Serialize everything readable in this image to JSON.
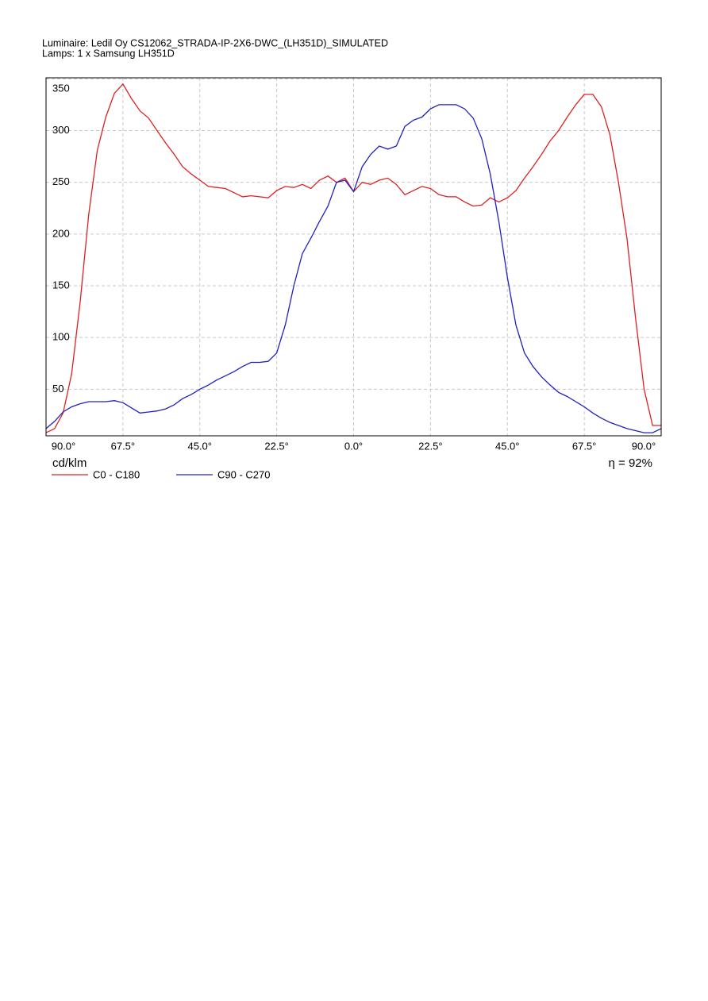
{
  "chart_data": {
    "type": "line",
    "title": "Luminaire: Ledil Oy CS12062_STRADA-IP-2X6-DWC_(LH351D)_SIMULATED",
    "subtitle": "Lamps: 1 x Samsung LH351D",
    "y_label": "cd/klm",
    "annotation": "η = 92%",
    "x": [
      -90,
      -87.5,
      -85,
      -82.5,
      -80,
      -77.5,
      -75,
      -72.5,
      -70,
      -67.5,
      -65,
      -62.5,
      -60,
      -57.5,
      -55,
      -52.5,
      -50,
      -47.5,
      -45,
      -42.5,
      -40,
      -37.5,
      -35,
      -32.5,
      -30,
      -27.5,
      -25,
      -22.5,
      -20,
      -17.5,
      -15,
      -12.5,
      -10,
      -7.5,
      -5,
      -2.5,
      0,
      2.5,
      5,
      7.5,
      10,
      12.5,
      15,
      17.5,
      20,
      22.5,
      25,
      27.5,
      30,
      32.5,
      35,
      37.5,
      40,
      42.5,
      45,
      47.5,
      50,
      52.5,
      55,
      57.5,
      60,
      62.5,
      65,
      67.5,
      70,
      72.5,
      75,
      77.5,
      80,
      82.5,
      85,
      87.5,
      90
    ],
    "series": [
      {
        "name": "C0 - C180",
        "color": "#e02020",
        "values": [
          8,
          12,
          27,
          65,
          135,
          219,
          281,
          313,
          336,
          345,
          331,
          319,
          312,
          300,
          288,
          277,
          265,
          258,
          252,
          246,
          245,
          244,
          240,
          236,
          237,
          236,
          235,
          242,
          246,
          245,
          248,
          244,
          252,
          256,
          250,
          254,
          241,
          250,
          248,
          252,
          254,
          248,
          238,
          242,
          246,
          244,
          238,
          236,
          236,
          231,
          227,
          228,
          235,
          231,
          235,
          242,
          254,
          265,
          277,
          290,
          300,
          313,
          325,
          335,
          335,
          323,
          296,
          250,
          196,
          119,
          50,
          15,
          15
        ]
      },
      {
        "name": "C90 - C270",
        "color": "#2020c0",
        "values": [
          12,
          19,
          28,
          33,
          36,
          38,
          38,
          38,
          39,
          37,
          32,
          27,
          28,
          29,
          31,
          35,
          41,
          45,
          50,
          54,
          59,
          63,
          67,
          72,
          76,
          76,
          77,
          85,
          112,
          150,
          181,
          196,
          212,
          227,
          250,
          252,
          241,
          265,
          277,
          285,
          282,
          285,
          304,
          310,
          313,
          321,
          325,
          325,
          325,
          321,
          312,
          292,
          258,
          212,
          158,
          112,
          85,
          72,
          62,
          54,
          47,
          43,
          38,
          33,
          27,
          22,
          18,
          15,
          12,
          10,
          8,
          8,
          12
        ]
      }
    ],
    "xlim": [
      -90,
      90
    ],
    "ylim": [
      5,
      351
    ],
    "xticks": [
      {
        "value": -90,
        "label": "90.0°"
      },
      {
        "value": -67.5,
        "label": "67.5°"
      },
      {
        "value": -45,
        "label": "45.0°"
      },
      {
        "value": -22.5,
        "label": "22.5°"
      },
      {
        "value": 0,
        "label": "0.0°"
      },
      {
        "value": 22.5,
        "label": "22.5°"
      },
      {
        "value": 45,
        "label": "45.0°"
      },
      {
        "value": 67.5,
        "label": "67.5°"
      },
      {
        "value": 90,
        "label": "90.0°"
      }
    ],
    "yticks": [
      50,
      100,
      150,
      200,
      250,
      300,
      350
    ],
    "grid": true
  }
}
